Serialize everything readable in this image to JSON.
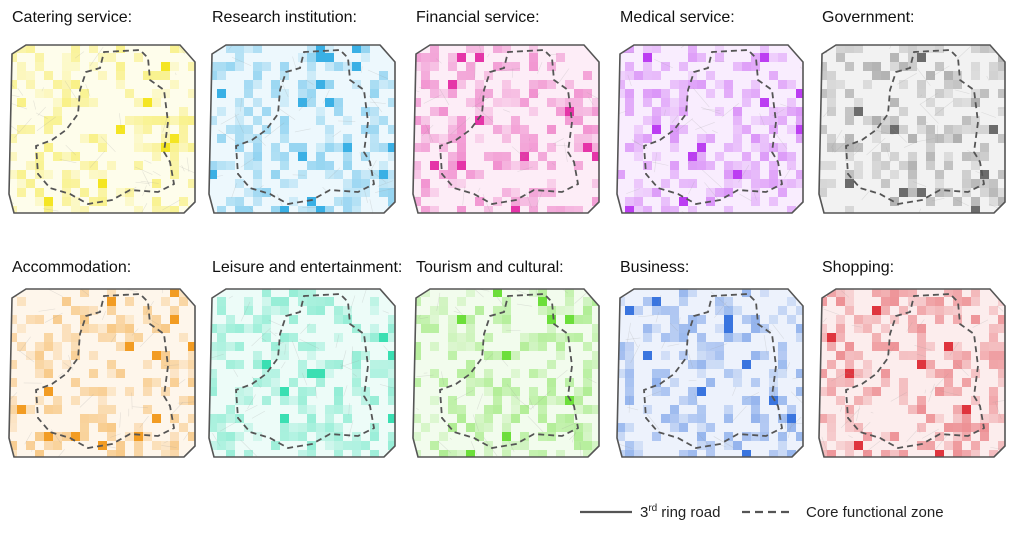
{
  "panels": [
    {
      "title": "Catering service:",
      "color": "#f2e000"
    },
    {
      "title": "Research institution:",
      "color": "#1aa3e0"
    },
    {
      "title": "Financial service:",
      "color": "#e0149a"
    },
    {
      "title": "Medical service:",
      "color": "#b21ef0"
    },
    {
      "title": "Government:",
      "color": "#555555"
    },
    {
      "title": "Accommodation:",
      "color": "#f08c00"
    },
    {
      "title": "Leisure and entertainment:",
      "color": "#1ad9a6"
    },
    {
      "title": "Tourism and cultural:",
      "color": "#55d91a"
    },
    {
      "title": "Business:",
      "color": "#1a5fd9"
    },
    {
      "title": "Shopping:",
      "color": "#d9141e"
    }
  ],
  "legend": [
    {
      "number": "3",
      "suffix": "rd",
      "text": "ring road"
    },
    {
      "text": "Core functional zone"
    }
  ]
}
